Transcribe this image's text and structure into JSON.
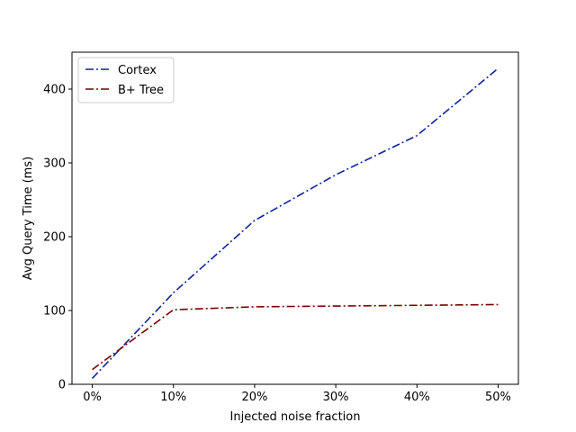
{
  "chart_data": {
    "type": "line",
    "title": "",
    "xlabel": "Injected noise fraction",
    "ylabel": "Avg Query Time (ms)",
    "categories": [
      "0%",
      "10%",
      "20%",
      "30%",
      "40%",
      "50%"
    ],
    "x": [
      0,
      10,
      20,
      30,
      40,
      50
    ],
    "xlim": [
      -2.5,
      52.5
    ],
    "ylim": [
      0,
      450
    ],
    "yticks": [
      0,
      100,
      200,
      300,
      400
    ],
    "grid": false,
    "legend_position": "top-left",
    "series": [
      {
        "name": "Cortex",
        "color": "#10259a",
        "line_style": "dash-dot",
        "values": [
          8,
          124,
          222,
          284,
          337,
          428
        ]
      },
      {
        "name": "B+ Tree",
        "color": "#7a0000",
        "line_style": "dash-dot",
        "values": [
          20,
          101,
          105,
          106,
          107,
          108
        ]
      }
    ]
  }
}
